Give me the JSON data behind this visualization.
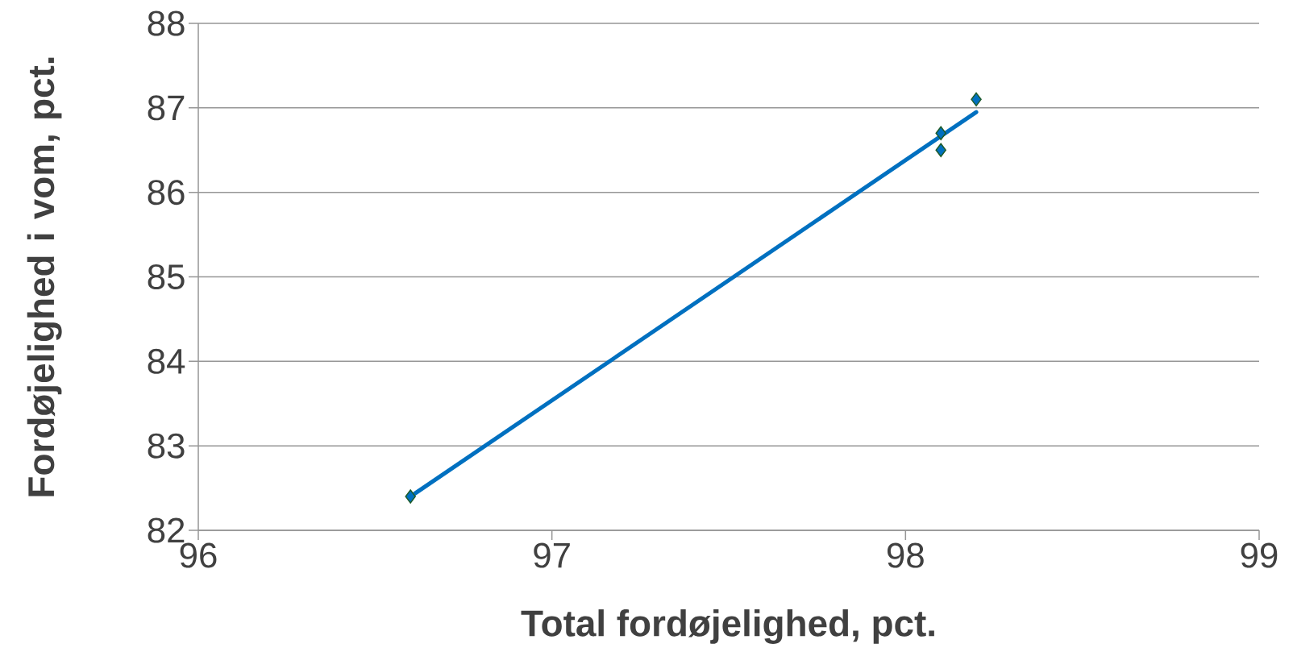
{
  "chart_data": {
    "type": "scatter",
    "xlabel": "Total fordøjelighed, pct.",
    "ylabel": "Fordøjelighed i vom, pct.",
    "xlim": [
      96,
      99
    ],
    "xticks": [
      96,
      97,
      98,
      99
    ],
    "ylim": [
      82,
      88
    ],
    "yticks": [
      82,
      83,
      84,
      85,
      86,
      87,
      88
    ],
    "grid": "y",
    "series": [
      {
        "type": "line",
        "x": [
          96.6,
          98.2
        ],
        "values": [
          82.4,
          86.95
        ],
        "color": "#0070c0",
        "marker": "none",
        "line_style": "solid"
      },
      {
        "x": [
          96.6,
          98.1,
          98.1,
          98.2
        ],
        "values": [
          82.4,
          86.7,
          86.5,
          87.1
        ],
        "color": "#0070c0",
        "marker": "diamond"
      }
    ]
  }
}
